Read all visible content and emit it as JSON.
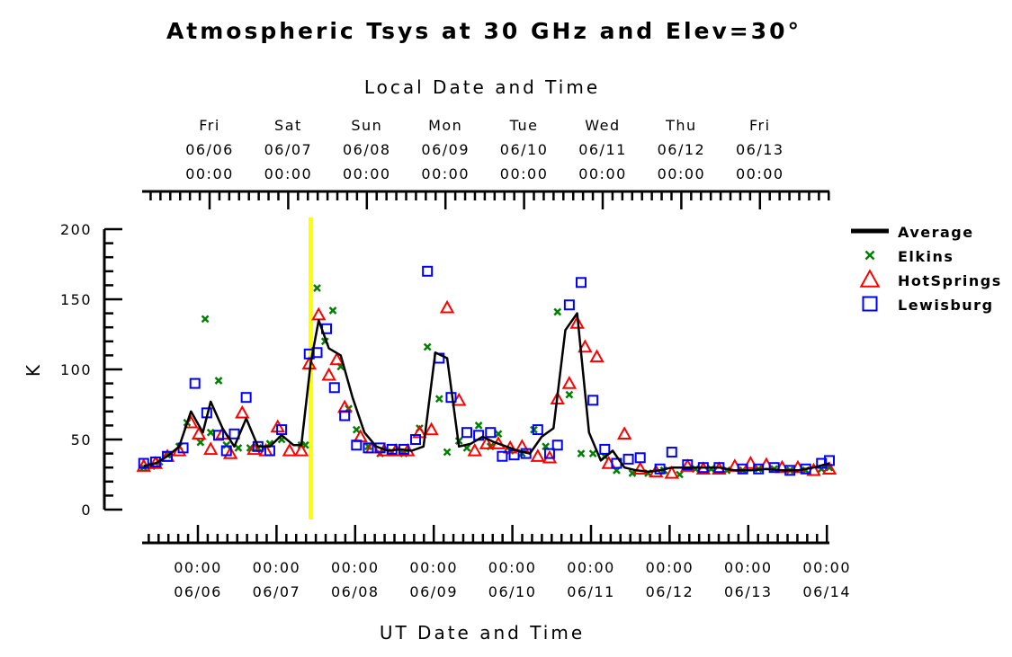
{
  "chart_data": {
    "type": "line",
    "title": "Atmospheric Tsys at 30 GHz and Elev=30°",
    "top_axis_title": "Local Date and Time",
    "xlabel": "UT Date and Time",
    "ylabel": "K",
    "ylim": [
      0,
      200
    ],
    "yticks": [
      0,
      50,
      100,
      150,
      200
    ],
    "x_unit": "UT day of June 2008",
    "xlim": [
      4.98,
      13.7
    ],
    "bottom_ticks": [
      {
        "time": "00:00",
        "date": "06/06"
      },
      {
        "time": "00:00",
        "date": "06/07"
      },
      {
        "time": "00:00",
        "date": "06/08"
      },
      {
        "time": "00:00",
        "date": "06/09"
      },
      {
        "time": "00:00",
        "date": "06/10"
      },
      {
        "time": "00:00",
        "date": "06/11"
      },
      {
        "time": "00:00",
        "date": "06/12"
      },
      {
        "time": "00:00",
        "date": "06/13"
      },
      {
        "time": "00:00",
        "date": "06/14"
      }
    ],
    "top_ticks": [
      {
        "day": "Fri",
        "date": "06/06",
        "time": "00:00"
      },
      {
        "day": "Sat",
        "date": "06/07",
        "time": "00:00"
      },
      {
        "day": "Sun",
        "date": "06/08",
        "time": "00:00"
      },
      {
        "day": "Mon",
        "date": "06/09",
        "time": "00:00"
      },
      {
        "day": "Tue",
        "date": "06/10",
        "time": "00:00"
      },
      {
        "day": "Wed",
        "date": "06/11",
        "time": "00:00"
      },
      {
        "day": "Thu",
        "date": "06/12",
        "time": "00:00"
      },
      {
        "day": "Fri",
        "date": "06/13",
        "time": "00:00"
      }
    ],
    "marker_line": {
      "x": 7.12,
      "color": "#ffff00"
    },
    "legend_position": "right",
    "series": [
      {
        "name": "Average",
        "style": "line",
        "color": "#000000",
        "x": [
          5.0,
          5.15,
          5.3,
          5.45,
          5.6,
          5.75,
          5.85,
          6.0,
          6.15,
          6.3,
          6.45,
          6.6,
          6.75,
          6.9,
          7.0,
          7.12,
          7.22,
          7.35,
          7.5,
          7.65,
          7.8,
          7.95,
          8.1,
          8.25,
          8.4,
          8.55,
          8.7,
          8.85,
          9.0,
          9.15,
          9.3,
          9.45,
          9.6,
          9.75,
          9.9,
          10.05,
          10.2,
          10.35,
          10.5,
          10.65,
          10.8,
          10.95,
          11.1,
          11.25,
          11.4,
          11.55,
          11.7,
          11.9,
          12.1,
          12.3,
          12.5,
          12.7,
          12.9,
          13.1,
          13.3,
          13.5,
          13.7
        ],
        "y": [
          31,
          33,
          38,
          45,
          70,
          55,
          77,
          58,
          45,
          65,
          45,
          45,
          53,
          46,
          46,
          105,
          135,
          115,
          110,
          80,
          55,
          45,
          42,
          43,
          42,
          45,
          112,
          108,
          45,
          47,
          52,
          48,
          45,
          42,
          40,
          52,
          58,
          128,
          140,
          55,
          35,
          42,
          30,
          28,
          27,
          28,
          30,
          30,
          30,
          30,
          28,
          28,
          29,
          28,
          28,
          30,
          33
        ]
      },
      {
        "name": "Elkins",
        "style": "x",
        "color": "#008000",
        "x": [
          5.0,
          5.1,
          5.2,
          5.3,
          5.45,
          5.55,
          5.72,
          5.78,
          5.85,
          5.95,
          6.05,
          6.2,
          6.35,
          6.45,
          6.6,
          6.75,
          7.0,
          7.05,
          7.2,
          7.3,
          7.4,
          7.5,
          7.6,
          7.7,
          7.85,
          8.0,
          8.15,
          8.3,
          8.5,
          8.6,
          8.75,
          8.85,
          9.0,
          9.1,
          9.25,
          9.4,
          9.5,
          9.65,
          9.8,
          9.95,
          10.1,
          10.25,
          10.4,
          10.55,
          10.7,
          10.85,
          11.0,
          11.2,
          11.4,
          11.6,
          11.8,
          12.0,
          12.2,
          12.4,
          12.6,
          12.8,
          13.0,
          13.2,
          13.4,
          13.6,
          13.7
        ],
        "y": [
          30,
          31,
          34,
          39,
          45,
          62,
          48,
          136,
          55,
          92,
          46,
          44,
          44,
          44,
          47,
          50,
          46,
          46,
          158,
          120,
          142,
          102,
          72,
          57,
          45,
          40,
          41,
          40,
          58,
          116,
          79,
          41,
          49,
          44,
          60,
          45,
          54,
          42,
          40,
          57,
          45,
          141,
          82,
          40,
          40,
          38,
          28,
          26,
          26,
          28,
          25,
          29,
          29,
          28,
          28,
          29,
          29,
          28,
          28,
          29,
          30
        ]
      },
      {
        "name": "HotSprings",
        "style": "triangle",
        "color": "#ff0000",
        "x": [
          5.0,
          5.15,
          5.3,
          5.45,
          5.6,
          5.7,
          5.85,
          6.0,
          6.1,
          6.25,
          6.4,
          6.55,
          6.7,
          6.85,
          7.0,
          7.1,
          7.22,
          7.35,
          7.45,
          7.55,
          7.75,
          7.9,
          8.05,
          8.2,
          8.35,
          8.5,
          8.65,
          8.85,
          9.0,
          9.2,
          9.35,
          9.5,
          9.65,
          9.8,
          10.0,
          10.15,
          10.25,
          10.4,
          10.5,
          10.6,
          10.75,
          10.9,
          11.1,
          11.3,
          11.5,
          11.7,
          11.9,
          12.1,
          12.3,
          12.5,
          12.7,
          12.9,
          13.1,
          13.3,
          13.5,
          13.7
        ],
        "y": [
          31,
          33,
          38,
          42,
          62,
          54,
          43,
          54,
          40,
          69,
          43,
          42,
          59,
          42,
          42,
          104,
          139,
          96,
          107,
          73,
          52,
          44,
          42,
          42,
          42,
          55,
          57,
          144,
          78,
          42,
          47,
          47,
          44,
          45,
          38,
          37,
          79,
          90,
          133,
          116,
          109,
          33,
          54,
          29,
          27,
          26,
          31,
          29,
          29,
          31,
          33,
          32,
          30,
          30,
          28,
          29
        ]
      },
      {
        "name": "Lewisburg",
        "style": "square",
        "color": "#0000ff",
        "x": [
          5.0,
          5.15,
          5.3,
          5.5,
          5.65,
          5.8,
          5.95,
          6.05,
          6.15,
          6.3,
          6.45,
          6.6,
          6.75,
          7.1,
          7.2,
          7.32,
          7.42,
          7.55,
          7.7,
          7.85,
          8.0,
          8.15,
          8.3,
          8.45,
          8.6,
          8.75,
          8.9,
          9.1,
          9.25,
          9.4,
          9.55,
          9.7,
          9.85,
          10.0,
          10.15,
          10.25,
          10.4,
          10.55,
          10.7,
          10.85,
          11.0,
          11.15,
          11.3,
          11.55,
          11.7,
          11.9,
          12.1,
          12.3,
          12.6,
          12.8,
          13.0,
          13.2,
          13.4,
          13.6,
          13.7
        ],
        "y": [
          33,
          34,
          38,
          44,
          90,
          69,
          53,
          42,
          54,
          80,
          45,
          42,
          57,
          111,
          112,
          129,
          87,
          67,
          46,
          44,
          44,
          43,
          43,
          50,
          170,
          108,
          80,
          55,
          53,
          55,
          38,
          39,
          40,
          57,
          40,
          46,
          146,
          162,
          78,
          43,
          33,
          36,
          37,
          29,
          41,
          32,
          30,
          30,
          29,
          29,
          30,
          28,
          29,
          33,
          35
        ]
      }
    ]
  }
}
